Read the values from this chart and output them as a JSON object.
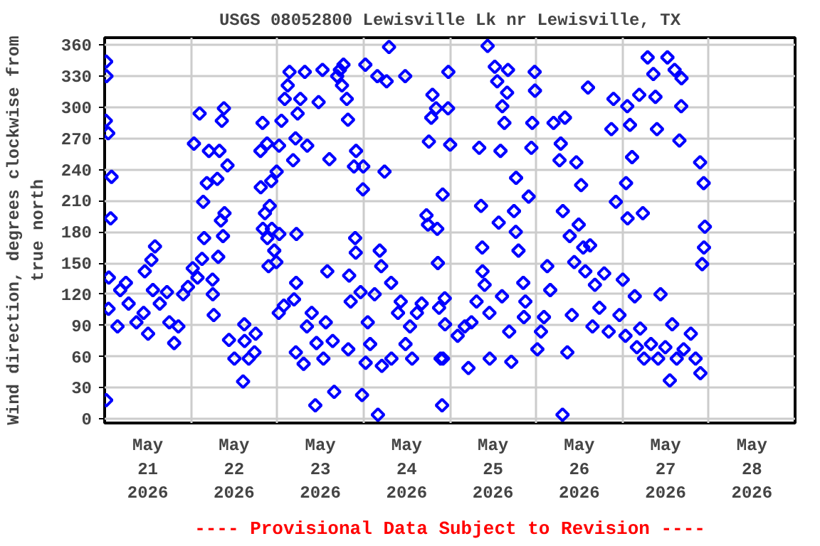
{
  "chart_data": {
    "type": "scatter",
    "title": "USGS 08052800 Lewisville Lk nr Lewisville, TX",
    "ylabel": "Wind direction, degrees clockwise from\ntrue north",
    "annotations": [
      "---- Provisional Data Subject to Revision ----"
    ],
    "marker": "diamond",
    "grid": true,
    "xlim": [
      "2026-05-21T00:00",
      "2026-05-29T00:00"
    ],
    "xticks": [
      {
        "value": "2026-05-21T12:00",
        "label": "May\n21\n2026"
      },
      {
        "value": "2026-05-22T00:00",
        "label": null
      },
      {
        "value": "2026-05-22T12:00",
        "label": "May\n22\n2026"
      },
      {
        "value": "2026-05-23T00:00",
        "label": null
      },
      {
        "value": "2026-05-23T12:00",
        "label": "May\n23\n2026"
      },
      {
        "value": "2026-05-24T00:00",
        "label": null
      },
      {
        "value": "2026-05-24T12:00",
        "label": "May\n24\n2026"
      },
      {
        "value": "2026-05-25T00:00",
        "label": null
      },
      {
        "value": "2026-05-25T12:00",
        "label": "May\n25\n2026"
      },
      {
        "value": "2026-05-26T00:00",
        "label": null
      },
      {
        "value": "2026-05-26T12:00",
        "label": "May\n26\n2026"
      },
      {
        "value": "2026-05-27T00:00",
        "label": null
      },
      {
        "value": "2026-05-27T12:00",
        "label": "May\n27\n2026"
      },
      {
        "value": "2026-05-28T00:00",
        "label": null
      },
      {
        "value": "2026-05-28T12:00",
        "label": "May\n28\n2026"
      }
    ],
    "ylim": [
      -4,
      367
    ],
    "yticks": [
      0,
      30,
      60,
      90,
      120,
      150,
      180,
      210,
      240,
      270,
      300,
      330,
      360
    ],
    "series": [
      {
        "color": "#0000ff",
        "x": [
          "2026-05-21T00:25",
          "2026-05-21T00:30",
          "2026-05-21T00:20",
          "2026-05-21T01:00",
          "2026-05-21T01:55",
          "2026-05-21T01:40",
          "2026-05-21T01:10",
          "2026-05-21T01:05",
          "2026-05-21T00:25",
          "2026-05-21T03:35",
          "2026-05-21T04:20",
          "2026-05-21T05:55",
          "2026-05-21T06:40",
          "2026-05-21T08:50",
          "2026-05-21T10:50",
          "2026-05-21T11:10",
          "2026-05-21T12:05",
          "2026-05-21T13:00",
          "2026-05-21T13:25",
          "2026-05-21T14:00",
          "2026-05-21T15:20",
          "2026-05-21T17:20",
          "2026-05-21T18:00",
          "2026-05-21T19:20",
          "2026-05-21T20:30",
          "2026-05-21T21:50",
          "2026-05-21T23:10",
          "2026-05-22T00:30",
          "2026-05-22T00:50",
          "2026-05-22T01:50",
          "2026-05-22T02:25",
          "2026-05-22T03:05",
          "2026-05-22T03:25",
          "2026-05-22T03:40",
          "2026-05-22T04:25",
          "2026-05-22T05:00",
          "2026-05-22T06:00",
          "2026-05-22T06:05",
          "2026-05-22T06:20",
          "2026-05-22T07:20",
          "2026-05-22T07:35",
          "2026-05-22T07:55",
          "2026-05-22T08:20",
          "2026-05-22T08:35",
          "2026-05-22T08:55",
          "2026-05-22T09:10",
          "2026-05-22T09:20",
          "2026-05-22T10:10",
          "2026-05-22T10:35",
          "2026-05-22T12:05",
          "2026-05-22T14:30",
          "2026-05-22T14:50",
          "2026-05-22T14:55",
          "2026-05-22T16:05",
          "2026-05-22T17:40",
          "2026-05-22T18:00",
          "2026-05-22T19:20",
          "2026-05-22T19:25",
          "2026-05-22T19:55",
          "2026-05-22T20:00",
          "2026-05-22T20:35",
          "2026-05-22T21:10",
          "2026-05-22T21:15",
          "2026-05-22T21:35",
          "2026-05-22T21:55",
          "2026-05-22T22:20",
          "2026-05-22T22:30",
          "2026-05-22T23:10",
          "2026-05-22T23:50",
          "2026-05-22T23:45",
          "2026-05-23T00:30",
          "2026-05-23T00:35",
          "2026-05-23T00:25",
          "2026-05-23T01:10",
          "2026-05-23T01:50",
          "2026-05-23T02:05",
          "2026-05-23T02:55",
          "2026-05-23T03:25",
          "2026-05-23T04:25",
          "2026-05-23T04:40",
          "2026-05-23T05:05",
          "2026-05-23T05:10",
          "2026-05-23T05:20",
          "2026-05-23T05:15",
          "2026-05-23T05:40",
          "2026-05-23T06:25",
          "2026-05-23T07:20",
          "2026-05-23T07:40",
          "2026-05-23T08:20",
          "2026-05-23T08:15",
          "2026-05-23T09:35",
          "2026-05-23T10:35",
          "2026-05-23T10:55",
          "2026-05-23T11:30",
          "2026-05-23T12:35",
          "2026-05-23T12:50",
          "2026-05-23T13:30",
          "2026-05-23T13:55",
          "2026-05-23T14:30",
          "2026-05-23T15:25",
          "2026-05-23T15:50",
          "2026-05-23T16:40",
          "2026-05-23T17:25",
          "2026-05-23T18:00",
          "2026-05-23T18:25",
          "2026-05-23T19:20",
          "2026-05-23T19:40",
          "2026-05-23T19:45",
          "2026-05-23T20:00",
          "2026-05-23T20:25",
          "2026-05-23T21:20",
          "2026-05-23T21:40",
          "2026-05-23T21:55",
          "2026-05-23T21:50",
          "2026-05-23T23:10",
          "2026-05-23T23:35",
          "2026-05-23T23:55",
          "2026-05-23T23:50",
          "2026-05-24T00:30",
          "2026-05-24T00:35",
          "2026-05-24T01:10",
          "2026-05-24T01:50",
          "2026-05-24T03:05",
          "2026-05-24T03:50",
          "2026-05-24T04:00",
          "2026-05-24T04:30",
          "2026-05-24T04:55",
          "2026-05-24T05:05",
          "2026-05-24T05:50",
          "2026-05-24T06:25",
          "2026-05-24T07:05",
          "2026-05-24T07:40",
          "2026-05-24T07:45",
          "2026-05-24T09:35",
          "2026-05-24T10:20",
          "2026-05-24T11:35",
          "2026-05-24T11:40",
          "2026-05-24T12:55",
          "2026-05-24T13:30",
          "2026-05-24T14:50",
          "2026-05-24T16:10",
          "2026-05-24T17:30",
          "2026-05-24T17:55",
          "2026-05-24T18:10",
          "2026-05-24T18:50",
          "2026-05-24T19:10",
          "2026-05-24T20:10",
          "2026-05-24T20:30",
          "2026-05-24T20:40",
          "2026-05-24T21:00",
          "2026-05-24T21:25",
          "2026-05-24T21:50",
          "2026-05-24T22:00",
          "2026-05-24T22:05",
          "2026-05-24T22:35",
          "2026-05-24T22:40",
          "2026-05-24T23:30",
          "2026-05-24T23:35",
          "2026-05-25T00:05",
          "2026-05-25T02:10",
          "2026-05-25T04:10",
          "2026-05-25T05:10",
          "2026-05-25T06:00",
          "2026-05-25T07:25",
          "2026-05-25T08:10",
          "2026-05-25T08:40",
          "2026-05-25T09:00",
          "2026-05-25T09:05",
          "2026-05-25T09:40",
          "2026-05-25T10:30",
          "2026-05-25T11:00",
          "2026-05-25T11:05",
          "2026-05-25T12:30",
          "2026-05-25T13:10",
          "2026-05-25T13:35",
          "2026-05-25T14:05",
          "2026-05-25T14:30",
          "2026-05-25T14:35",
          "2026-05-25T15:10",
          "2026-05-25T15:55",
          "2026-05-25T16:10",
          "2026-05-25T16:30",
          "2026-05-25T17:05",
          "2026-05-25T17:50",
          "2026-05-25T18:25",
          "2026-05-25T18:20",
          "2026-05-25T19:05",
          "2026-05-25T20:25",
          "2026-05-25T20:35",
          "2026-05-25T21:00",
          "2026-05-25T21:55",
          "2026-05-25T22:40",
          "2026-05-25T22:55",
          "2026-05-25T23:35",
          "2026-05-25T23:40",
          "2026-05-26T00:20",
          "2026-05-26T01:20",
          "2026-05-26T02:10",
          "2026-05-26T03:05",
          "2026-05-26T03:55",
          "2026-05-26T04:50",
          "2026-05-26T06:30",
          "2026-05-26T06:50",
          "2026-05-26T07:25",
          "2026-05-26T07:20",
          "2026-05-26T08:00",
          "2026-05-26T08:40",
          "2026-05-26T09:20",
          "2026-05-26T09:55",
          "2026-05-26T10:35",
          "2026-05-26T11:10",
          "2026-05-26T11:50",
          "2026-05-26T12:30",
          "2026-05-26T13:05",
          "2026-05-26T13:40",
          "2026-05-26T14:25",
          "2026-05-26T15:00",
          "2026-05-26T15:40",
          "2026-05-26T16:20",
          "2026-05-26T17:35",
          "2026-05-26T18:55",
          "2026-05-26T20:10",
          "2026-05-26T20:55",
          "2026-05-26T21:30",
          "2026-05-26T22:10",
          "2026-05-26T23:10",
          "2026-05-27T00:05",
          "2026-05-27T00:50",
          "2026-05-27T01:00",
          "2026-05-27T01:25",
          "2026-05-27T01:20",
          "2026-05-27T02:05",
          "2026-05-27T02:40",
          "2026-05-27T03:25",
          "2026-05-27T04:00",
          "2026-05-27T04:40",
          "2026-05-27T04:55",
          "2026-05-27T05:40",
          "2026-05-27T06:00",
          "2026-05-27T07:00",
          "2026-05-27T07:55",
          "2026-05-27T08:35",
          "2026-05-27T09:10",
          "2026-05-27T09:35",
          "2026-05-27T09:55",
          "2026-05-27T10:35",
          "2026-05-27T11:55",
          "2026-05-27T12:30",
          "2026-05-27T13:10",
          "2026-05-27T13:50",
          "2026-05-27T14:30",
          "2026-05-27T15:05",
          "2026-05-27T15:50",
          "2026-05-27T16:25",
          "2026-05-27T16:20",
          "2026-05-27T17:00",
          "2026-05-27T19:00",
          "2026-05-27T20:20",
          "2026-05-27T21:35",
          "2026-05-27T21:40",
          "2026-05-27T22:10",
          "2026-05-27T22:35",
          "2026-05-27T22:40",
          "2026-05-27T22:55"
        ],
        "values": [
          344,
          330,
          287,
          275,
          233,
          193,
          136,
          106,
          18,
          89,
          124,
          131,
          111,
          93,
          102,
          142,
          82,
          153,
          124,
          166,
          111,
          122,
          93,
          73,
          89,
          120,
          127,
          145,
          265,
          136,
          294,
          154,
          209,
          174,
          227,
          258,
          134,
          120,
          100,
          231,
          156,
          258,
          191,
          287,
          176,
          299,
          198,
          244,
          76,
          58,
          36,
          91,
          75,
          58,
          64,
          82,
          258,
          223,
          285,
          183,
          198,
          265,
          174,
          147,
          205,
          229,
          183,
          162,
          238,
          151,
          263,
          178,
          102,
          287,
          109,
          308,
          321,
          334,
          249,
          115,
          270,
          64,
          178,
          131,
          294,
          308,
          53,
          334,
          263,
          89,
          102,
          13,
          73,
          305,
          336,
          58,
          93,
          142,
          250,
          75,
          26,
          330,
          336,
          321,
          341,
          308,
          288,
          67,
          138,
          113,
          243,
          174,
          258,
          160,
          122,
          23,
          243,
          221,
          341,
          54,
          93,
          72,
          120,
          330,
          4,
          162,
          147,
          51,
          238,
          325,
          358,
          131,
          58,
          102,
          113,
          330,
          72,
          89,
          58,
          102,
          111,
          196,
          187,
          267,
          290,
          312,
          299,
          183,
          150,
          107,
          58,
          13,
          216,
          58,
          116,
          91,
          299,
          334,
          264,
          80,
          89,
          49,
          93,
          113,
          261,
          205,
          165,
          142,
          129,
          359,
          102,
          58,
          339,
          325,
          189,
          258,
          118,
          301,
          285,
          314,
          336,
          84,
          55,
          200,
          232,
          180,
          162,
          131,
          98,
          113,
          214,
          261,
          285,
          334,
          316,
          67,
          84,
          98,
          147,
          124,
          285,
          249,
          265,
          200,
          4,
          290,
          64,
          176,
          100,
          151,
          247,
          187,
          225,
          165,
          142,
          319,
          167,
          89,
          129,
          107,
          140,
          84,
          279,
          308,
          209,
          100,
          134,
          80,
          227,
          193,
          301,
          283,
          252,
          118,
          69,
          312,
          87,
          198,
          58,
          348,
          72,
          332,
          310,
          279,
          58,
          120,
          69,
          348,
          37,
          91,
          336,
          58,
          268,
          328,
          301,
          67,
          82,
          58,
          247,
          44,
          149,
          227,
          165,
          185
        ]
      }
    ]
  }
}
